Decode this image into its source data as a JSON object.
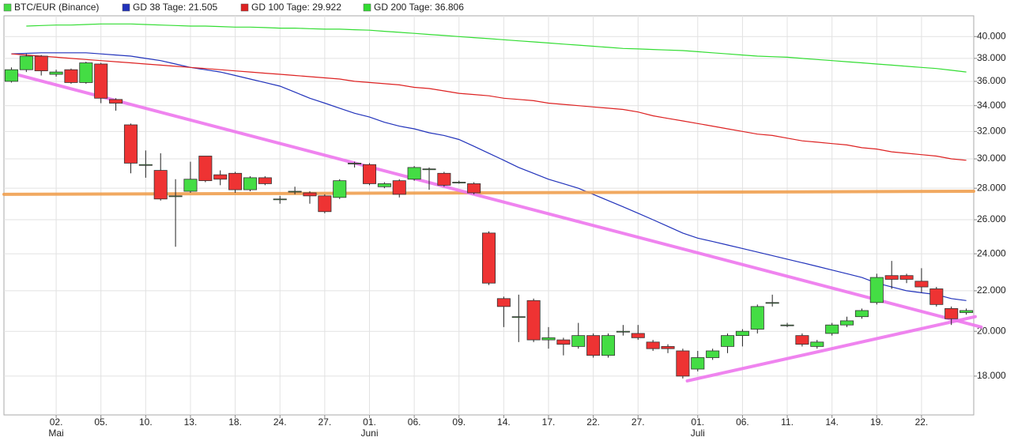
{
  "chart_data": {
    "type": "candlestick",
    "log_scale": true,
    "grid": true,
    "ylim": [
      16430,
      42000
    ],
    "yticks": [
      {
        "value": 18000,
        "label": "18.000"
      },
      {
        "value": 20000,
        "label": "20.000"
      },
      {
        "value": 22000,
        "label": "22.000"
      },
      {
        "value": 24000,
        "label": "24.000"
      },
      {
        "value": 26000,
        "label": "26.000"
      },
      {
        "value": 28000,
        "label": "28.000"
      },
      {
        "value": 30000,
        "label": "30.000"
      },
      {
        "value": 32000,
        "label": "32.000"
      },
      {
        "value": 34000,
        "label": "34.000"
      },
      {
        "value": 36000,
        "label": "36.000"
      },
      {
        "value": 38000,
        "label": "38.000"
      },
      {
        "value": 40000,
        "label": "40.000"
      }
    ],
    "categories": [
      null,
      null,
      null,
      "02.",
      null,
      null,
      "05.",
      null,
      null,
      "10.",
      null,
      null,
      "13.",
      null,
      null,
      "18.",
      null,
      null,
      "24.",
      null,
      null,
      "27.",
      null,
      null,
      "01.",
      null,
      null,
      "06.",
      null,
      null,
      "09.",
      null,
      null,
      "14.",
      null,
      null,
      "17.",
      null,
      null,
      "22.",
      null,
      null,
      "27.",
      null,
      null,
      null,
      "01.",
      null,
      null,
      "06.",
      null,
      null,
      "11.",
      null,
      null,
      "14.",
      null,
      null,
      "19.",
      null,
      null,
      "22.",
      null,
      null,
      null
    ],
    "months": [
      null,
      null,
      null,
      "Mai",
      null,
      null,
      null,
      null,
      null,
      null,
      null,
      null,
      null,
      null,
      null,
      null,
      null,
      null,
      null,
      null,
      null,
      null,
      null,
      null,
      "Juni",
      null,
      null,
      null,
      null,
      null,
      null,
      null,
      null,
      null,
      null,
      null,
      null,
      null,
      null,
      null,
      null,
      null,
      null,
      null,
      null,
      null,
      "Juli",
      null,
      null,
      null,
      null,
      null,
      null,
      null,
      null,
      null,
      null,
      null,
      null,
      null,
      null,
      null,
      null,
      null,
      null
    ],
    "series": [
      {
        "name": "BTC/EUR (Binance)",
        "type": "candlestick",
        "color": "#44dd44",
        "down_color": "#ee3333",
        "open": [
          36000,
          37000,
          38200,
          36600,
          37000,
          35900,
          37500,
          34500,
          32500,
          29600,
          29200,
          27500,
          27800,
          30200,
          28900,
          29000,
          27900,
          28700,
          27300,
          27800,
          27700,
          27500,
          27400,
          29700,
          29600,
          28100,
          28500,
          28600,
          29300,
          29000,
          28400,
          28300,
          25200,
          21600,
          20700,
          21500,
          19600,
          19600,
          19300,
          19800,
          18900,
          20000,
          19900,
          19500,
          19300,
          19100,
          18300,
          18800,
          19300,
          19800,
          20100,
          21400,
          20300,
          19800,
          19300,
          19900,
          20300,
          20700,
          21400,
          22800,
          22800,
          22500,
          22100,
          21100,
          20900
        ],
        "high": [
          37200,
          38400,
          38300,
          37000,
          37100,
          37700,
          37600,
          34600,
          32600,
          30600,
          30400,
          28600,
          29800,
          30200,
          29200,
          29100,
          28800,
          28800,
          27500,
          28100,
          27800,
          27600,
          28600,
          29800,
          29700,
          28400,
          28600,
          29500,
          29400,
          29100,
          28500,
          28400,
          25300,
          21700,
          21800,
          21600,
          20200,
          19700,
          20400,
          19900,
          19900,
          20300,
          20300,
          19600,
          19400,
          19200,
          19100,
          19200,
          19900,
          20100,
          21300,
          21800,
          20400,
          19900,
          19600,
          20400,
          20700,
          21100,
          22900,
          23600,
          22900,
          23200,
          22200,
          21200,
          21100
        ],
        "low": [
          35900,
          36800,
          36500,
          36400,
          35800,
          35800,
          34200,
          33600,
          29000,
          28700,
          27200,
          24400,
          27700,
          28400,
          28200,
          27700,
          27800,
          28200,
          27000,
          27600,
          27000,
          26400,
          27300,
          29400,
          28200,
          28000,
          27400,
          28500,
          27900,
          28100,
          28300,
          27600,
          22300,
          20200,
          19500,
          19500,
          19200,
          18900,
          19200,
          18800,
          18800,
          19800,
          19600,
          19100,
          19000,
          17900,
          18200,
          18700,
          19000,
          19300,
          19900,
          21200,
          20200,
          19300,
          19200,
          19800,
          20200,
          20600,
          21300,
          22100,
          22400,
          21900,
          21200,
          20300,
          20800
        ],
        "close": [
          37000,
          38200,
          36900,
          36800,
          35900,
          37600,
          34600,
          34200,
          29700,
          29600,
          27300,
          27500,
          28600,
          28500,
          28600,
          27900,
          28700,
          28300,
          27300,
          27800,
          27500,
          26500,
          28500,
          29700,
          28300,
          28300,
          27600,
          29400,
          29300,
          28200,
          28400,
          27700,
          22400,
          21200,
          20700,
          19600,
          19700,
          19400,
          19800,
          18900,
          19800,
          20000,
          19700,
          19200,
          19200,
          18000,
          18800,
          19100,
          19800,
          20000,
          21200,
          21400,
          20300,
          19400,
          19500,
          20300,
          20500,
          21000,
          22700,
          22600,
          22600,
          22200,
          21300,
          20600,
          21000
        ]
      },
      {
        "name": "GD 38 Tage: 21.505",
        "type": "line",
        "color": "#2233bb",
        "values": [
          38400,
          38450,
          38500,
          38500,
          38500,
          38500,
          38400,
          38300,
          38200,
          38000,
          37800,
          37500,
          37200,
          37000,
          36800,
          36500,
          36200,
          35900,
          35600,
          35100,
          34600,
          34200,
          33800,
          33400,
          33100,
          32700,
          32400,
          32200,
          31900,
          31700,
          31400,
          30900,
          30400,
          29900,
          29400,
          29000,
          28600,
          28300,
          28000,
          27600,
          27200,
          26800,
          26400,
          26000,
          25600,
          25200,
          24900,
          24700,
          24500,
          24300,
          24100,
          23900,
          23700,
          23500,
          23300,
          23100,
          22900,
          22700,
          22400,
          22200,
          22000,
          21900,
          21800,
          21600,
          21500
        ]
      },
      {
        "name": "GD 100 Tage: 29.922",
        "type": "line",
        "color": "#dd2222",
        "values": [
          38400,
          38300,
          38200,
          38100,
          38000,
          37900,
          37800,
          37700,
          37600,
          37500,
          37400,
          37300,
          37200,
          37100,
          37000,
          36900,
          36800,
          36700,
          36600,
          36500,
          36400,
          36300,
          36200,
          36000,
          35900,
          35800,
          35700,
          35500,
          35400,
          35200,
          35000,
          34900,
          34800,
          34600,
          34500,
          34400,
          34200,
          34100,
          34000,
          33900,
          33800,
          33700,
          33500,
          33200,
          33000,
          32800,
          32600,
          32400,
          32200,
          32000,
          31800,
          31700,
          31500,
          31300,
          31200,
          31100,
          31000,
          30800,
          30700,
          30500,
          30400,
          30300,
          30200,
          30000,
          29900
        ]
      },
      {
        "name": "GD 200 Tage: 36.806",
        "type": "line",
        "color": "#33dd33",
        "values": [
          null,
          41000,
          41050,
          41100,
          41100,
          41150,
          41200,
          41200,
          41200,
          41150,
          41100,
          41050,
          41000,
          41000,
          40950,
          40900,
          40900,
          40850,
          40800,
          40800,
          40750,
          40700,
          40700,
          40650,
          40600,
          40500,
          40400,
          40300,
          40200,
          40100,
          40000,
          39900,
          39800,
          39700,
          39600,
          39500,
          39400,
          39300,
          39200,
          39100,
          39000,
          38900,
          38850,
          38800,
          38750,
          38700,
          38600,
          38500,
          38400,
          38300,
          38200,
          38150,
          38100,
          38000,
          37900,
          37800,
          37700,
          37600,
          37500,
          37400,
          37300,
          37200,
          37100,
          36950,
          36800
        ]
      }
    ],
    "trendlines": [
      {
        "color": "#f0a050",
        "x": [
          -0.5,
          64.5
        ],
        "y": [
          27600,
          27800
        ]
      },
      {
        "color": "#ee77ee",
        "x": [
          0,
          65
        ],
        "y": [
          36700,
          20200
        ]
      },
      {
        "color": "#ee77ee",
        "x": [
          45.3,
          64.6
        ],
        "y": [
          17800,
          20700
        ]
      }
    ]
  }
}
